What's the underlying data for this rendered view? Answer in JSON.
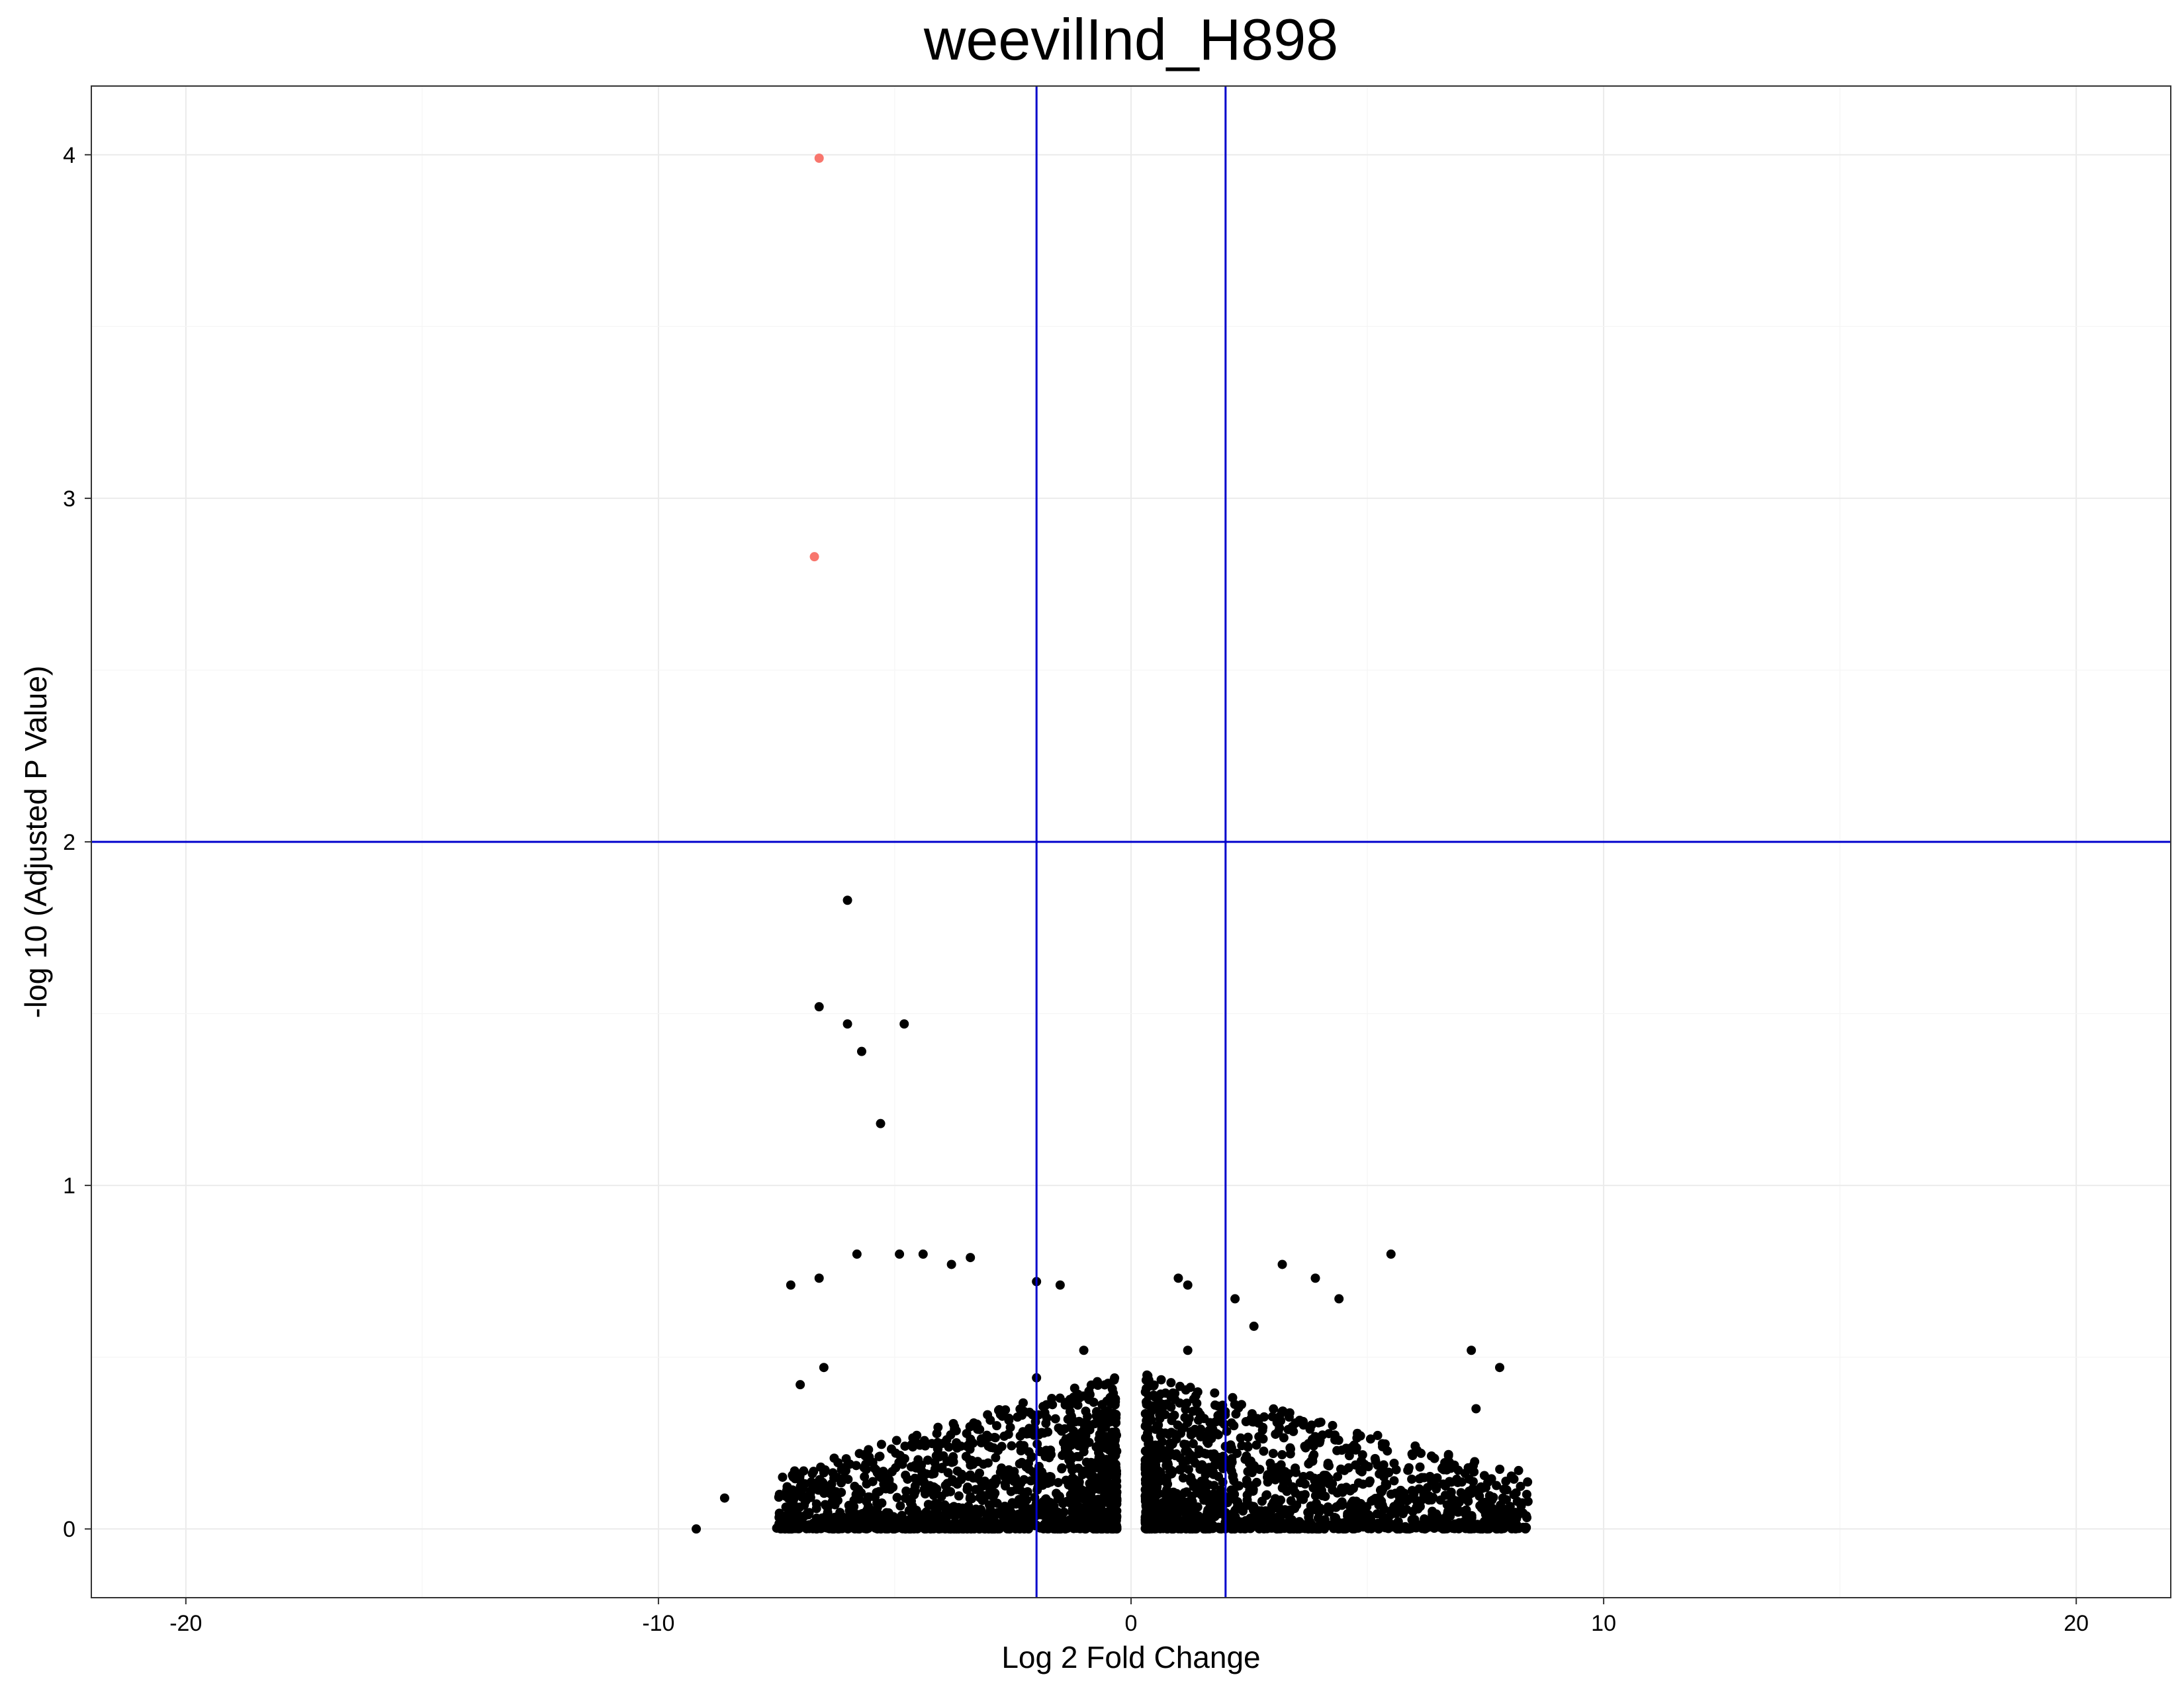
{
  "chart_data": {
    "type": "scatter",
    "title": "weevilInd_H898",
    "xlabel": "Log 2 Fold Change",
    "ylabel": "-log 10 (Adjusted P Value)",
    "xlim": [
      -22.0,
      22.0
    ],
    "ylim": [
      -0.2,
      4.2
    ],
    "x_ticks": [
      -20,
      -10,
      0,
      10,
      20
    ],
    "x_tick_labels": [
      "-20",
      "-10",
      "0",
      "10",
      "20"
    ],
    "y_ticks": [
      0,
      1,
      2,
      3,
      4
    ],
    "y_tick_labels": [
      "0",
      "1",
      "2",
      "3",
      "4"
    ],
    "grid": true,
    "legend": "none",
    "thresholds": {
      "vlines": [
        -2,
        2
      ],
      "hlines": [
        2
      ],
      "color": "#0000cc"
    },
    "significant_color": "#f8766d",
    "nonsignificant_color": "#000000",
    "significant_points": [
      {
        "x": -6.6,
        "y": 3.99
      },
      {
        "x": -6.7,
        "y": 2.83
      }
    ],
    "nonsignificant_points": [
      {
        "x": -6.0,
        "y": 1.83
      },
      {
        "x": -6.6,
        "y": 1.52
      },
      {
        "x": -6.0,
        "y": 1.47
      },
      {
        "x": -4.8,
        "y": 1.47
      },
      {
        "x": -5.7,
        "y": 1.39
      },
      {
        "x": -5.3,
        "y": 1.18
      },
      {
        "x": -9.2,
        "y": 0.0
      },
      {
        "x": -8.6,
        "y": 0.09
      },
      {
        "x": -7.2,
        "y": 0.71
      },
      {
        "x": -6.6,
        "y": 0.73
      },
      {
        "x": -5.8,
        "y": 0.8
      },
      {
        "x": -4.9,
        "y": 0.8
      },
      {
        "x": -4.4,
        "y": 0.8
      },
      {
        "x": -3.4,
        "y": 0.79
      },
      {
        "x": -3.8,
        "y": 0.77
      },
      {
        "x": -2.0,
        "y": 0.72
      },
      {
        "x": -1.5,
        "y": 0.71
      },
      {
        "x": -1.0,
        "y": 0.52
      },
      {
        "x": -2.0,
        "y": 0.44
      },
      {
        "x": -6.5,
        "y": 0.47
      },
      {
        "x": -7.0,
        "y": 0.42
      },
      {
        "x": 1.0,
        "y": 0.73
      },
      {
        "x": 1.2,
        "y": 0.71
      },
      {
        "x": 1.2,
        "y": 0.52
      },
      {
        "x": 2.2,
        "y": 0.67
      },
      {
        "x": 2.6,
        "y": 0.59
      },
      {
        "x": 3.2,
        "y": 0.77
      },
      {
        "x": 3.9,
        "y": 0.73
      },
      {
        "x": 4.4,
        "y": 0.67
      },
      {
        "x": 5.5,
        "y": 0.8
      },
      {
        "x": 7.2,
        "y": 0.52
      },
      {
        "x": 7.8,
        "y": 0.47
      },
      {
        "x": 7.3,
        "y": 0.35
      },
      {
        "x": 8.2,
        "y": 0.17
      },
      {
        "x": 8.4,
        "y": 0.08
      },
      {
        "x": 6.9,
        "y": 0.06
      }
    ],
    "bulk_cloud": {
      "description_note": "",
      "left_x_range": [
        -7.5,
        -0.3
      ],
      "right_x_range": [
        0.3,
        8.4
      ],
      "y_range": [
        0.0,
        0.45
      ]
    }
  }
}
